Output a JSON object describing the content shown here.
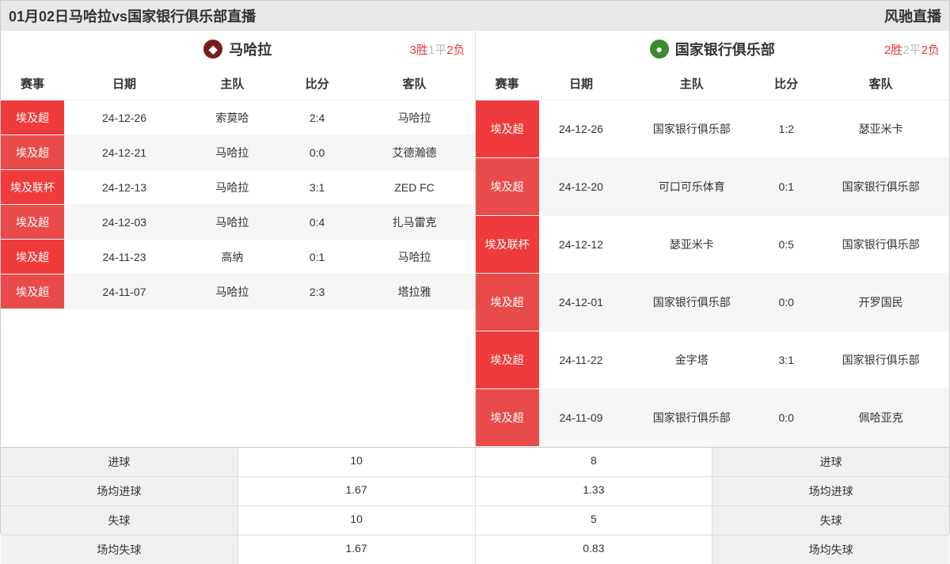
{
  "header": {
    "title": "01月02日马哈拉vs国家银行俱乐部直播",
    "brand": "风驰直播"
  },
  "colors": {
    "comp_bg": "#ef3b3b",
    "comp_bg_alt": "#e94b4b",
    "win": "#e63b3b",
    "draw": "#bbb",
    "loss": "#e63b3b"
  },
  "columns": {
    "comp": "赛事",
    "date": "日期",
    "home": "主队",
    "score": "比分",
    "away": "客队"
  },
  "left": {
    "team": "马哈拉",
    "logo_color": "#7a1a1a",
    "logo_glyph": "◆",
    "record": {
      "w": "3胜",
      "d": "1平",
      "l": "2负"
    },
    "rows": [
      {
        "comp": "埃及超",
        "date": "24-12-26",
        "home": "索莫哈",
        "score": "2:4",
        "away": "马哈拉"
      },
      {
        "comp": "埃及超",
        "date": "24-12-21",
        "home": "马哈拉",
        "score": "0:0",
        "away": "艾德瀚德"
      },
      {
        "comp": "埃及联杯",
        "date": "24-12-13",
        "home": "马哈拉",
        "score": "3:1",
        "away": "ZED FC"
      },
      {
        "comp": "埃及超",
        "date": "24-12-03",
        "home": "马哈拉",
        "score": "0:4",
        "away": "扎马雷克"
      },
      {
        "comp": "埃及超",
        "date": "24-11-23",
        "home": "高纳",
        "score": "0:1",
        "away": "马哈拉"
      },
      {
        "comp": "埃及超",
        "date": "24-11-07",
        "home": "马哈拉",
        "score": "2:3",
        "away": "塔拉雅"
      }
    ]
  },
  "right": {
    "team": "国家银行俱乐部",
    "logo_color": "#3a8a2e",
    "logo_glyph": "●",
    "record": {
      "w": "2胜",
      "d": "2平",
      "l": "2负"
    },
    "rows": [
      {
        "comp": "埃及超",
        "date": "24-12-26",
        "home": "国家银行俱乐部",
        "score": "1:2",
        "away": "瑟亚米卡"
      },
      {
        "comp": "埃及超",
        "date": "24-12-20",
        "home": "可口可乐体育",
        "score": "0:1",
        "away": "国家银行俱乐部"
      },
      {
        "comp": "埃及联杯",
        "date": "24-12-12",
        "home": "瑟亚米卡",
        "score": "0:5",
        "away": "国家银行俱乐部"
      },
      {
        "comp": "埃及超",
        "date": "24-12-01",
        "home": "国家银行俱乐部",
        "score": "0:0",
        "away": "开罗国民"
      },
      {
        "comp": "埃及超",
        "date": "24-11-22",
        "home": "金字塔",
        "score": "3:1",
        "away": "国家银行俱乐部"
      },
      {
        "comp": "埃及超",
        "date": "24-11-09",
        "home": "国家银行俱乐部",
        "score": "0:0",
        "away": "佩哈亚克"
      }
    ]
  },
  "stats": {
    "labels": {
      "goals": "进球",
      "avg_goals": "场均进球",
      "conceded": "失球",
      "avg_conceded": "场均失球"
    },
    "left": {
      "goals": "10",
      "avg_goals": "1.67",
      "conceded": "10",
      "avg_conceded": "1.67"
    },
    "right": {
      "goals": "8",
      "avg_goals": "1.33",
      "conceded": "5",
      "avg_conceded": "0.83"
    }
  }
}
